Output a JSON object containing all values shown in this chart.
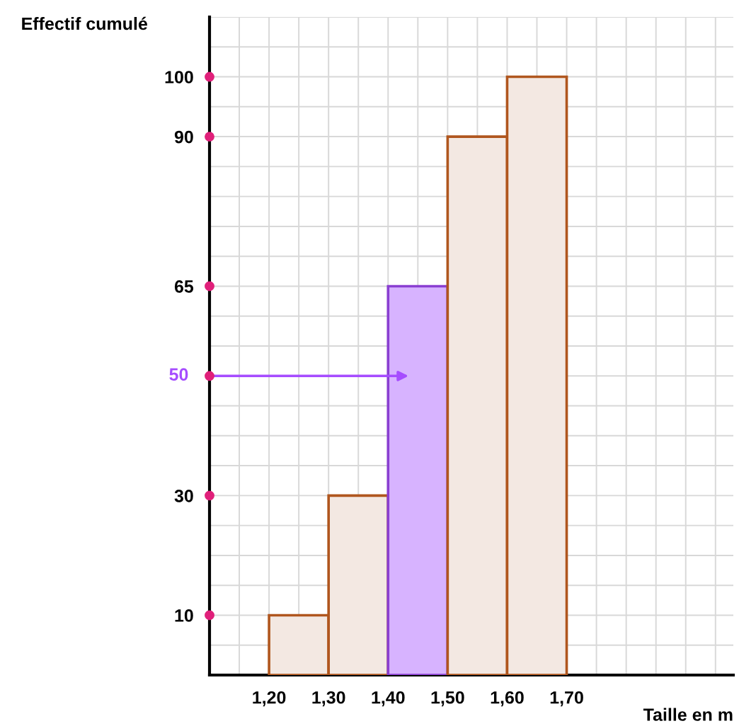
{
  "chart_data": {
    "type": "histogram",
    "xlabel": "Taille en m",
    "ylabel": "Effectif cumulé",
    "bins": [
      1.2,
      1.3,
      1.4,
      1.5,
      1.6,
      1.7
    ],
    "values": [
      10,
      30,
      65,
      90,
      100
    ],
    "colors": [
      "#f3e8e2",
      "#f3e8e2",
      "#d7b3ff",
      "#f3e8e2",
      "#f3e8e2"
    ],
    "xlim": [
      1.1,
      1.98
    ],
    "ylim": [
      0,
      110
    ],
    "xticks": [
      {
        "value": 1.2,
        "label": "1,20"
      },
      {
        "value": 1.3,
        "label": "1,30"
      },
      {
        "value": 1.4,
        "label": "1,40"
      },
      {
        "value": 1.5,
        "label": "1,50"
      },
      {
        "value": 1.6,
        "label": "1,60"
      },
      {
        "value": 1.7,
        "label": "1,70"
      }
    ],
    "yticks": [
      10,
      30,
      65,
      90,
      100
    ],
    "annotations": [
      "50"
    ],
    "grid": true
  }
}
